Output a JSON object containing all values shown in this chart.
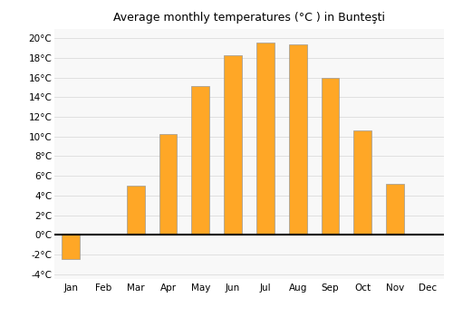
{
  "title": "Average monthly temperatures (°C ) in Bunteşti",
  "months": [
    "Jan",
    "Feb",
    "Mar",
    "Apr",
    "May",
    "Jun",
    "Jul",
    "Aug",
    "Sep",
    "Oct",
    "Nov",
    "Dec"
  ],
  "values": [
    -2.5,
    0,
    5.0,
    10.3,
    15.1,
    18.3,
    19.6,
    19.4,
    16.0,
    10.6,
    5.2,
    0
  ],
  "bar_color": "#FFA726",
  "bar_edge_color": "#999999",
  "ylim": [
    -4.5,
    21
  ],
  "yticks": [
    -4,
    -2,
    0,
    2,
    4,
    6,
    8,
    10,
    12,
    14,
    16,
    18,
    20
  ],
  "background_color": "#ffffff",
  "plot_bg_color": "#f8f8f8",
  "grid_color": "#e0e0e0",
  "zero_line_color": "#000000",
  "title_fontsize": 9,
  "tick_fontsize": 7.5,
  "bar_width": 0.55
}
